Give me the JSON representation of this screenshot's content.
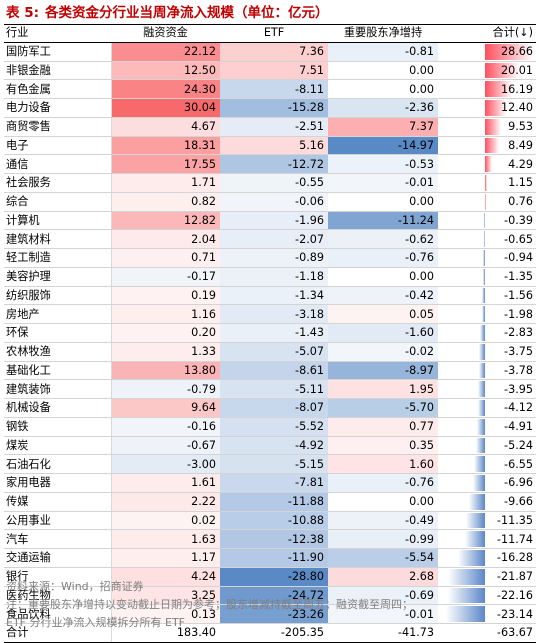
{
  "title": {
    "number": "表 5:",
    "text": "各类资金分行业当周净流入规模（单位：亿元）"
  },
  "columns": [
    "行业",
    "融资资金",
    "ETF",
    "重要股东净增持",
    "合计(↓)"
  ],
  "rows": [
    {
      "name": "国防军工",
      "m": 22.12,
      "e": 7.36,
      "h": -0.81,
      "t": 28.66
    },
    {
      "name": "非银金融",
      "m": 12.5,
      "e": 7.51,
      "h": 0.0,
      "t": 20.01
    },
    {
      "name": "有色金属",
      "m": 24.3,
      "e": -8.11,
      "h": 0.0,
      "t": 16.19
    },
    {
      "name": "电力设备",
      "m": 30.04,
      "e": -15.28,
      "h": -2.36,
      "t": 12.4
    },
    {
      "name": "商贸零售",
      "m": 4.67,
      "e": -2.51,
      "h": 7.37,
      "t": 9.53
    },
    {
      "name": "电子",
      "m": 18.31,
      "e": 5.16,
      "h": -14.97,
      "t": 8.49
    },
    {
      "name": "通信",
      "m": 17.55,
      "e": -12.72,
      "h": -0.53,
      "t": 4.29
    },
    {
      "name": "社会服务",
      "m": 1.71,
      "e": -0.55,
      "h": -0.01,
      "t": 1.15
    },
    {
      "name": "综合",
      "m": 0.82,
      "e": -0.06,
      "h": 0.0,
      "t": 0.76
    },
    {
      "name": "计算机",
      "m": 12.82,
      "e": -1.96,
      "h": -11.24,
      "t": -0.39
    },
    {
      "name": "建筑材料",
      "m": 2.04,
      "e": -2.07,
      "h": -0.62,
      "t": -0.65
    },
    {
      "name": "轻工制造",
      "m": 0.71,
      "e": -0.89,
      "h": -0.76,
      "t": -0.94
    },
    {
      "name": "美容护理",
      "m": -0.17,
      "e": -1.18,
      "h": 0.0,
      "t": -1.35
    },
    {
      "name": "纺织服饰",
      "m": 0.19,
      "e": -1.34,
      "h": -0.42,
      "t": -1.56
    },
    {
      "name": "房地产",
      "m": 1.16,
      "e": -3.18,
      "h": 0.05,
      "t": -1.98
    },
    {
      "name": "环保",
      "m": 0.2,
      "e": -1.43,
      "h": -1.6,
      "t": -2.83
    },
    {
      "name": "农林牧渔",
      "m": 1.33,
      "e": -5.07,
      "h": -0.02,
      "t": -3.75
    },
    {
      "name": "基础化工",
      "m": 13.8,
      "e": -8.61,
      "h": -8.97,
      "t": -3.78
    },
    {
      "name": "建筑装饰",
      "m": -0.79,
      "e": -5.11,
      "h": 1.95,
      "t": -3.95
    },
    {
      "name": "机械设备",
      "m": 9.64,
      "e": -8.07,
      "h": -5.7,
      "t": -4.12
    },
    {
      "name": "钢铁",
      "m": -0.16,
      "e": -5.52,
      "h": 0.77,
      "t": -4.91
    },
    {
      "name": "煤炭",
      "m": -0.67,
      "e": -4.92,
      "h": 0.35,
      "t": -5.24
    },
    {
      "name": "石油石化",
      "m": -3.0,
      "e": -5.15,
      "h": 1.6,
      "t": -6.55
    },
    {
      "name": "家用电器",
      "m": 1.61,
      "e": -7.81,
      "h": -0.76,
      "t": -6.96
    },
    {
      "name": "传媒",
      "m": 2.22,
      "e": -11.88,
      "h": 0.0,
      "t": -9.66
    },
    {
      "name": "公用事业",
      "m": 0.02,
      "e": -10.88,
      "h": -0.49,
      "t": -11.35
    },
    {
      "name": "汽车",
      "m": 1.63,
      "e": -12.38,
      "h": -0.99,
      "t": -11.74
    },
    {
      "name": "交通运输",
      "m": 1.17,
      "e": -11.9,
      "h": -5.54,
      "t": -16.28
    },
    {
      "name": "银行",
      "m": 4.24,
      "e": -28.8,
      "h": 2.68,
      "t": -21.87
    },
    {
      "name": "医药生物",
      "m": 3.25,
      "e": -24.72,
      "h": -0.69,
      "t": -22.16
    },
    {
      "name": "食品饮料",
      "m": 0.13,
      "e": -23.26,
      "h": -0.01,
      "t": -23.14
    }
  ],
  "summary": {
    "name": "合计",
    "m": "183.40",
    "e": "-205.35",
    "h": "-41.73",
    "t": "-63.67"
  },
  "colors": {
    "positive": "#f8696b",
    "negative": "#5a8ac6",
    "bar_positive": "#ff4f5e",
    "bar_negative": "#5b87c8"
  },
  "footnotes": {
    "source": "资料来源：Wind，招商证券",
    "note1": "注：重要股东净增持以变动截止日期为参考；股东增减持截至周五；融资截至周四；",
    "note2": "ETF 分行业净流入规模拆分所有 ETF"
  }
}
